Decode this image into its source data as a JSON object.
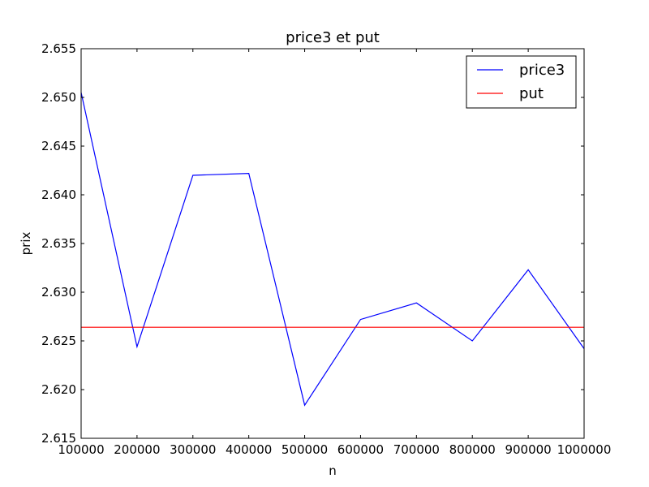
{
  "chart_data": {
    "type": "line",
    "title": "price3 et put",
    "xlabel": "n",
    "ylabel": "prix",
    "xlim": [
      100000,
      1000000
    ],
    "ylim": [
      2.615,
      2.655
    ],
    "xticks": [
      100000,
      200000,
      300000,
      400000,
      500000,
      600000,
      700000,
      800000,
      900000,
      1000000
    ],
    "xtick_labels": [
      "100000",
      "200000",
      "300000",
      "400000",
      "500000",
      "600000",
      "700000",
      "800000",
      "900000",
      "1000000"
    ],
    "yticks": [
      2.615,
      2.62,
      2.625,
      2.63,
      2.635,
      2.64,
      2.645,
      2.65,
      2.655
    ],
    "ytick_labels": [
      "2.615",
      "2.620",
      "2.625",
      "2.630",
      "2.635",
      "2.640",
      "2.645",
      "2.650",
      "2.655"
    ],
    "grid": false,
    "legend_position": "top-right",
    "series": [
      {
        "name": "price3",
        "color": "#0000ff",
        "x": [
          100000,
          200000,
          300000,
          400000,
          500000,
          600000,
          700000,
          800000,
          900000,
          1000000
        ],
        "y": [
          2.6505,
          2.6244,
          2.642,
          2.6422,
          2.6184,
          2.6272,
          2.6289,
          2.625,
          2.6323,
          2.6242
        ]
      },
      {
        "name": "put",
        "color": "#ff0000",
        "x": [
          100000,
          1000000
        ],
        "y": [
          2.6264,
          2.6264
        ]
      }
    ]
  }
}
